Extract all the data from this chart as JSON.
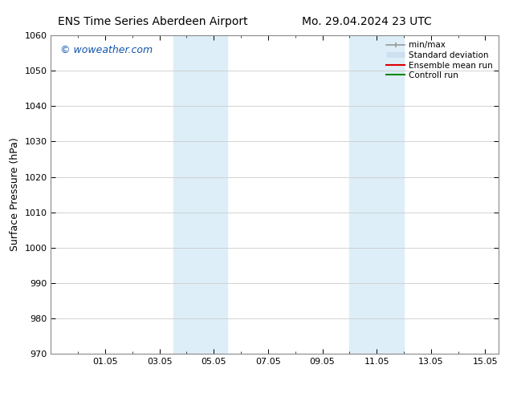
{
  "title_left": "ENS Time Series Aberdeen Airport",
  "title_right": "Mo. 29.04.2024 23 UTC",
  "ylabel": "Surface Pressure (hPa)",
  "ylim": [
    970,
    1060
  ],
  "yticks": [
    970,
    980,
    990,
    1000,
    1010,
    1020,
    1030,
    1040,
    1050,
    1060
  ],
  "xlim": [
    0.0,
    16.5
  ],
  "xtick_positions": [
    2,
    4,
    6,
    8,
    10,
    12,
    14,
    16
  ],
  "xtick_labels": [
    "01.05",
    "03.05",
    "05.05",
    "07.05",
    "09.05",
    "11.05",
    "13.05",
    "15.05"
  ],
  "shade_bands": [
    {
      "xmin": 4.5,
      "xmax": 6.5,
      "color": "#ddeef8"
    },
    {
      "xmin": 11.0,
      "xmax": 13.0,
      "color": "#ddeef8"
    }
  ],
  "watermark": "© woweather.com",
  "watermark_color": "#1155aa",
  "legend_items": [
    {
      "label": "min/max",
      "color": "#999999",
      "lw": 1.2,
      "style": "minmax"
    },
    {
      "label": "Standard deviation",
      "color": "#cce0f0",
      "lw": 5,
      "style": "band"
    },
    {
      "label": "Ensemble mean run",
      "color": "#dd0000",
      "lw": 1.5,
      "style": "line"
    },
    {
      "label": "Controll run",
      "color": "#008800",
      "lw": 1.5,
      "style": "line"
    }
  ],
  "bg_color": "#ffffff",
  "grid_color": "#cccccc",
  "spine_color": "#888888",
  "title_fontsize": 10,
  "ylabel_fontsize": 9,
  "tick_fontsize": 8,
  "legend_fontsize": 7.5,
  "watermark_fontsize": 9
}
